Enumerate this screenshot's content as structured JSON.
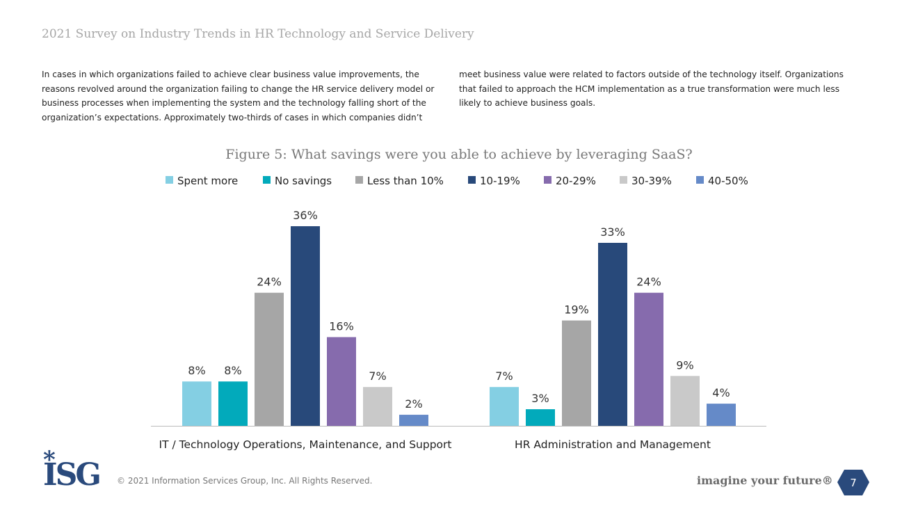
{
  "header": {
    "title": "2021 Survey on Industry Trends in HR Technology and Service Delivery"
  },
  "body": {
    "col1": "In cases in which organizations failed to achieve clear business value improvements, the reasons revolved around the organization failing to change the HR service delivery model or business processes when implementing the system and the technology falling short of the organization’s expectations. Approximately two-thirds of cases in which companies didn’t",
    "col2": "meet business value were related to factors outside of the technology itself. Organizations that failed to approach the HCM implementation as a true transformation were much less likely to achieve business goals."
  },
  "footer": {
    "copyright": "© 2021 Information Services Group, Inc. All Rights Reserved.",
    "tagline": "imagine your future®",
    "page": "7",
    "logo": "ISG"
  },
  "chart_data": {
    "type": "bar",
    "title": "Figure 5: What savings were you able to achieve by leveraging SaaS?",
    "categories": [
      "IT / Technology Operations, Maintenance, and Support",
      "HR Administration and Management"
    ],
    "series": [
      {
        "name": "Spent more",
        "color": "#84cfe3",
        "values": [
          8,
          7
        ]
      },
      {
        "name": "No savings",
        "color": "#02aabb",
        "values": [
          8,
          3
        ]
      },
      {
        "name": "Less than 10%",
        "color": "#a6a6a6",
        "values": [
          24,
          19
        ]
      },
      {
        "name": "10-19%",
        "color": "#28497a",
        "values": [
          36,
          33
        ]
      },
      {
        "name": "20-29%",
        "color": "#866bad",
        "values": [
          16,
          24
        ]
      },
      {
        "name": "30-39%",
        "color": "#c9c9c9",
        "values": [
          7,
          9
        ]
      },
      {
        "name": "40-50%",
        "color": "#658ac8",
        "values": [
          2,
          4
        ]
      }
    ],
    "value_suffix": "%",
    "legend": "top",
    "ylim": [
      0,
      36
    ],
    "grid": false
  }
}
